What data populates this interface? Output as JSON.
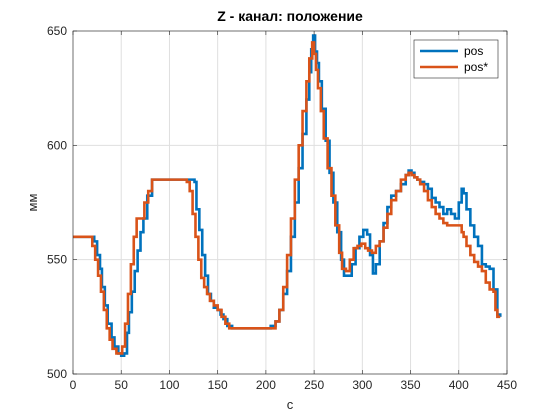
{
  "chart_data": {
    "type": "line",
    "title": "Z - канал: положение",
    "xlabel": "с",
    "ylabel": "мм",
    "xlim": [
      0,
      450
    ],
    "ylim": [
      500,
      650
    ],
    "xticks": [
      0,
      50,
      100,
      150,
      200,
      250,
      300,
      350,
      400,
      450
    ],
    "yticks": [
      500,
      550,
      600,
      650
    ],
    "grid": true,
    "legend_position": "top-right",
    "series": [
      {
        "name": "pos",
        "color": "#0072BD",
        "x": [
          0,
          20,
          22,
          25,
          28,
          30,
          33,
          36,
          40,
          43,
          47,
          50,
          53,
          56,
          58,
          61,
          64,
          67,
          70,
          73,
          77,
          82,
          88,
          95,
          105,
          115,
          122,
          126,
          128,
          131,
          134,
          137,
          140,
          143,
          146,
          150,
          153,
          156,
          160,
          165,
          175,
          185,
          195,
          205,
          210,
          214,
          218,
          222,
          226,
          230,
          234,
          238,
          242,
          245,
          247,
          249,
          251,
          253,
          255,
          258,
          262,
          266,
          270,
          274,
          278,
          281,
          285,
          289,
          293,
          297,
          301,
          305,
          308,
          311,
          314,
          318,
          322,
          326,
          330,
          335,
          340,
          345,
          348,
          351,
          354,
          357,
          360,
          364,
          368,
          372,
          376,
          380,
          384,
          388,
          392,
          396,
          400,
          403,
          405,
          408,
          412,
          416,
          420,
          424,
          428,
          432,
          436,
          440,
          443
        ],
        "y": [
          560,
          560,
          558,
          552,
          546,
          538,
          530,
          522,
          516,
          512,
          509,
          508,
          509,
          518,
          527,
          536,
          545,
          554,
          562,
          568,
          578,
          585,
          585,
          585,
          585,
          585,
          585,
          584,
          572,
          563,
          552,
          543,
          535,
          532,
          529,
          528,
          526,
          524,
          521,
          520,
          520,
          520,
          520,
          521,
          523,
          528,
          535,
          545,
          560,
          575,
          590,
          605,
          620,
          632,
          642,
          648,
          641,
          636,
          628,
          616,
          602,
          588,
          575,
          562,
          550,
          543,
          543,
          548,
          555,
          560,
          563,
          561,
          552,
          544,
          548,
          558,
          566,
          573,
          578,
          580,
          583,
          587,
          589,
          588,
          586,
          585,
          584,
          583,
          581,
          577,
          575,
          573,
          570,
          572,
          570,
          568,
          575,
          581,
          579,
          572,
          565,
          560,
          556,
          548,
          547,
          546,
          537,
          526,
          525
        ]
      },
      {
        "name": "pos*",
        "color": "#D95319",
        "x": [
          0,
          18,
          20,
          23,
          26,
          29,
          32,
          35,
          38,
          41,
          45,
          48,
          51,
          54,
          57,
          60,
          63,
          66,
          70,
          74,
          78,
          82,
          88,
          95,
          105,
          112,
          118,
          121,
          124,
          127,
          130,
          133,
          136,
          139,
          142,
          146,
          150,
          154,
          158,
          162,
          170,
          180,
          190,
          200,
          206,
          210,
          214,
          218,
          222,
          226,
          230,
          234,
          238,
          242,
          245,
          248,
          250,
          252,
          254,
          257,
          260,
          264,
          268,
          272,
          276,
          279,
          283,
          287,
          291,
          295,
          299,
          303,
          306,
          310,
          314,
          318,
          322,
          326,
          330,
          335,
          340,
          345,
          348,
          351,
          354,
          357,
          360,
          364,
          368,
          372,
          376,
          380,
          384,
          388,
          392,
          396,
          400,
          403,
          405,
          408,
          412,
          416,
          420,
          424,
          428,
          432,
          434,
          436,
          438,
          440,
          443
        ],
        "y": [
          560,
          560,
          556,
          550,
          543,
          536,
          528,
          520,
          515,
          511,
          509,
          509,
          512,
          522,
          535,
          548,
          560,
          568,
          568,
          575,
          580,
          585,
          585,
          585,
          585,
          585,
          584,
          580,
          570,
          560,
          550,
          542,
          538,
          535,
          532,
          530,
          528,
          525,
          522,
          520,
          520,
          520,
          520,
          520,
          520,
          523,
          528,
          538,
          552,
          568,
          585,
          600,
          615,
          628,
          638,
          645,
          640,
          633,
          625,
          615,
          603,
          590,
          578,
          565,
          553,
          546,
          545,
          550,
          555,
          556,
          557,
          555,
          554,
          553,
          556,
          558,
          564,
          570,
          576,
          580,
          585,
          587,
          588,
          587,
          586,
          585,
          583,
          580,
          576,
          573,
          570,
          568,
          566,
          565,
          565,
          565,
          565,
          562,
          560,
          556,
          552,
          549,
          547,
          545,
          540,
          537,
          537,
          536,
          528,
          525,
          525
        ]
      }
    ]
  }
}
